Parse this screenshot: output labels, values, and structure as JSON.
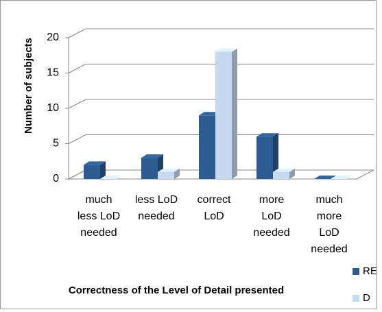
{
  "chart_data": {
    "type": "bar3d",
    "categories": [
      "much less LoD needed",
      "less LoD needed",
      "correct LoD",
      "more LoD needed",
      "much more LoD needed"
    ],
    "series": [
      {
        "name": "RE",
        "color": "#2c5c92",
        "values": [
          2,
          3,
          9,
          6,
          0
        ]
      },
      {
        "name": "D",
        "color": "#c6d9f0",
        "values": [
          0,
          1,
          18,
          1,
          0
        ]
      }
    ],
    "ylim": [
      0,
      20
    ],
    "yticks": [
      0,
      5,
      10,
      15,
      20
    ],
    "grid": true,
    "y_label": "Number of subjects",
    "x_label": "Correctness of the Level of Detail presented",
    "legend": "bottom-right"
  }
}
